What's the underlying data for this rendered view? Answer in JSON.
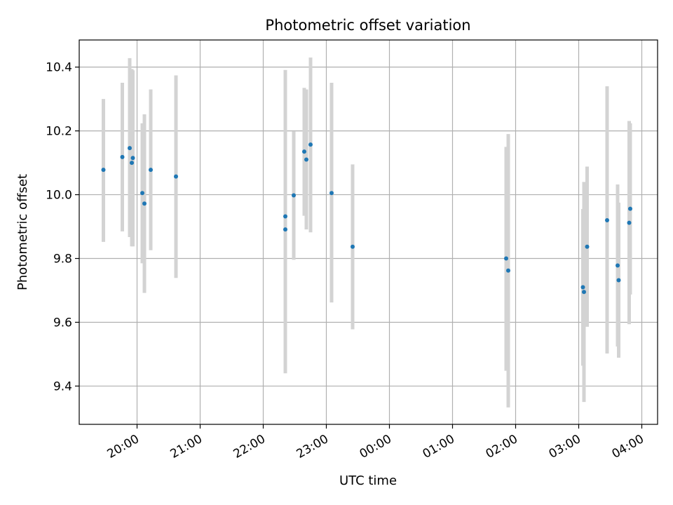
{
  "chart_data": {
    "type": "scatter",
    "title": "Photometric offset variation",
    "xlabel": "UTC time",
    "ylabel": "Photometric offset",
    "xlim": [
      "19:05",
      "04:15"
    ],
    "ylim": [
      9.28,
      10.485
    ],
    "x_tick_labels": [
      "20:00",
      "21:00",
      "22:00",
      "23:00",
      "00:00",
      "01:00",
      "02:00",
      "03:00",
      "04:00"
    ],
    "x_tick_values": [
      "20:00",
      "21:00",
      "22:00",
      "23:00",
      "00:00",
      "01:00",
      "02:00",
      "03:00",
      "04:00"
    ],
    "y_ticks": [
      9.4,
      9.6,
      9.8,
      10.0,
      10.2,
      10.4
    ],
    "y_tick_labels": [
      "9.4",
      "9.6",
      "9.8",
      "10.0",
      "10.2",
      "10.4"
    ],
    "grid": true,
    "point_color": "#1f77b4",
    "errorbar_color": "#d3d3d3",
    "series": [
      {
        "points": [
          {
            "x": "19:28",
            "y": 10.078,
            "low": 9.852,
            "high": 10.3
          },
          {
            "x": "19:46",
            "y": 10.118,
            "low": 9.885,
            "high": 10.351
          },
          {
            "x": "19:53",
            "y": 10.146,
            "low": 9.867,
            "high": 10.428
          },
          {
            "x": "19:55",
            "y": 10.1,
            "low": 9.838,
            "high": 10.394
          },
          {
            "x": "19:56",
            "y": 10.115,
            "low": 9.838,
            "high": 10.39
          },
          {
            "x": "20:05",
            "y": 10.005,
            "low": 9.785,
            "high": 10.224
          },
          {
            "x": "20:07",
            "y": 9.972,
            "low": 9.692,
            "high": 10.252
          },
          {
            "x": "20:13",
            "y": 10.078,
            "low": 9.826,
            "high": 10.33
          },
          {
            "x": "20:37",
            "y": 10.057,
            "low": 9.739,
            "high": 10.374
          },
          {
            "x": "22:21",
            "y": 9.932,
            "low": 9.503,
            "high": 10.342
          },
          {
            "x": "22:21",
            "y": 9.891,
            "low": 9.44,
            "high": 10.391
          },
          {
            "x": "22:29",
            "y": 9.998,
            "low": 9.796,
            "high": 10.199
          },
          {
            "x": "22:39",
            "y": 10.135,
            "low": 9.934,
            "high": 10.335
          },
          {
            "x": "22:41",
            "y": 10.11,
            "low": 9.891,
            "high": 10.33
          },
          {
            "x": "22:45",
            "y": 10.157,
            "low": 9.882,
            "high": 10.43
          },
          {
            "x": "23:05",
            "y": 10.005,
            "low": 9.662,
            "high": 10.351
          },
          {
            "x": "23:25",
            "y": 9.837,
            "low": 9.578,
            "high": 10.095
          },
          {
            "x": "01:51",
            "y": 9.8,
            "low": 9.448,
            "high": 10.15
          },
          {
            "x": "01:53",
            "y": 9.762,
            "low": 9.333,
            "high": 10.19
          },
          {
            "x": "03:04",
            "y": 9.71,
            "low": 9.464,
            "high": 9.955
          },
          {
            "x": "03:05",
            "y": 9.695,
            "low": 9.35,
            "high": 10.04
          },
          {
            "x": "03:08",
            "y": 9.837,
            "low": 9.586,
            "high": 10.088
          },
          {
            "x": "03:27",
            "y": 9.92,
            "low": 9.502,
            "high": 10.34
          },
          {
            "x": "03:37",
            "y": 9.778,
            "low": 9.524,
            "high": 10.032
          },
          {
            "x": "03:38",
            "y": 9.732,
            "low": 9.489,
            "high": 9.975
          },
          {
            "x": "03:48",
            "y": 9.912,
            "low": 9.594,
            "high": 10.231
          },
          {
            "x": "03:49",
            "y": 9.956,
            "low": 9.687,
            "high": 10.224
          }
        ]
      }
    ]
  }
}
